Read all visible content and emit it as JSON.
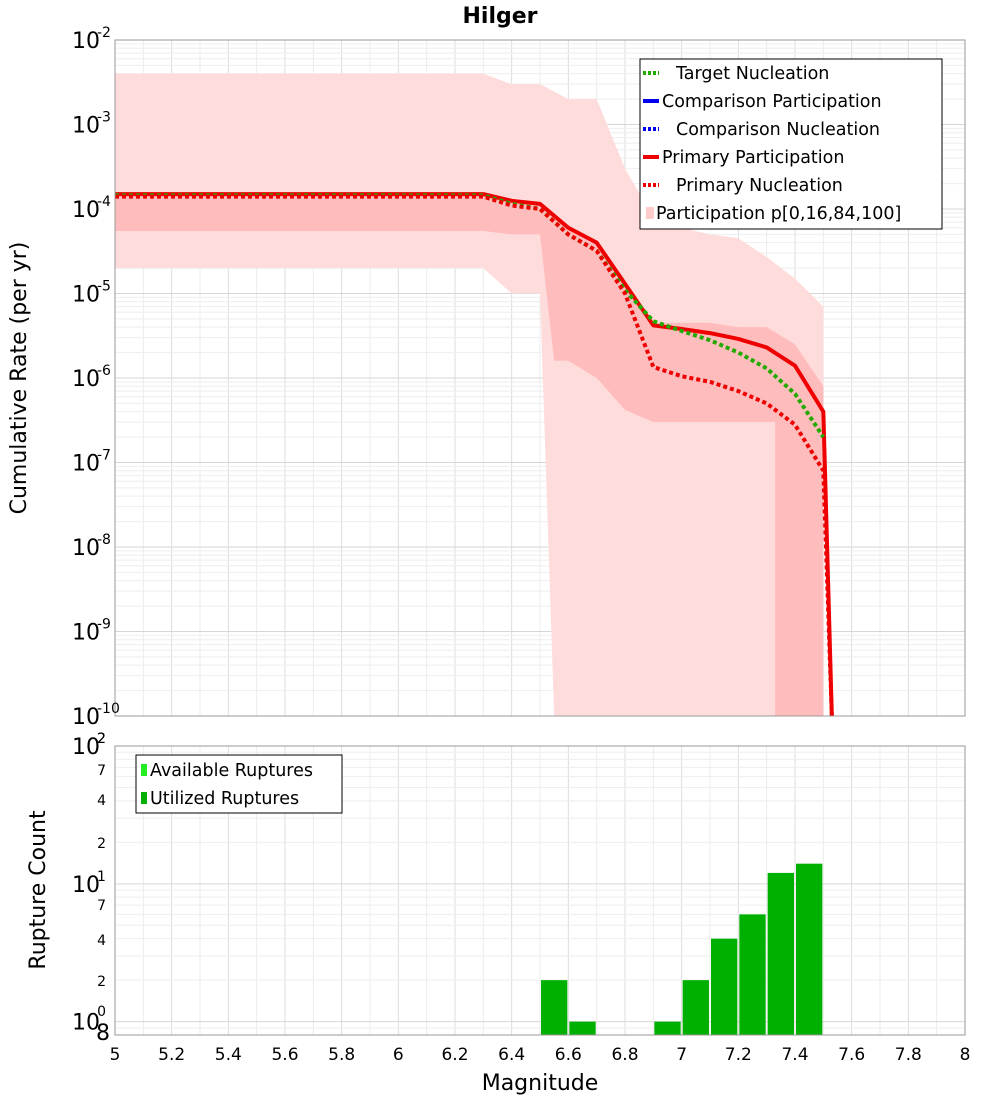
{
  "chart_data": [
    {
      "type": "line",
      "title": "Hilger",
      "ylabel": "Cumulative Rate (per yr)",
      "xlabel": "",
      "xlim": [
        5,
        8
      ],
      "ylim": [
        1e-10,
        0.01
      ],
      "yscale": "log",
      "ytick_labels": [
        {
          "base": "10",
          "exp": "-2"
        },
        {
          "base": "10",
          "exp": "-3"
        },
        {
          "base": "10",
          "exp": "-4"
        },
        {
          "base": "10",
          "exp": "-5"
        },
        {
          "base": "10",
          "exp": "-6"
        },
        {
          "base": "10",
          "exp": "-7"
        },
        {
          "base": "10",
          "exp": "-8"
        },
        {
          "base": "10",
          "exp": "-9"
        },
        {
          "base": "10",
          "exp": "-10"
        }
      ],
      "legend_position": "top-right",
      "legend": [
        {
          "label": "Target Nucleation",
          "color": "#22aa00",
          "style": "dotted"
        },
        {
          "label": "Comparison Participation",
          "color": "#0000ee",
          "style": "solid"
        },
        {
          "label": "Comparison Nucleation",
          "color": "#0000ee",
          "style": "dotted"
        },
        {
          "label": "Primary Participation",
          "color": "#ee0000",
          "style": "solid"
        },
        {
          "label": "Primary Nucleation",
          "color": "#ee0000",
          "style": "dotted"
        },
        {
          "label": "Participation p[0,16,84,100]",
          "color": "#ffcccc",
          "style": "fill"
        }
      ],
      "bands": [
        {
          "name": "p0-p100",
          "color": "#ffdcdc",
          "upper": [
            [
              5.0,
              0.004
            ],
            [
              6.3,
              0.004
            ],
            [
              6.4,
              0.003
            ],
            [
              6.5,
              0.003
            ],
            [
              6.6,
              0.002
            ],
            [
              6.7,
              0.002
            ],
            [
              6.8,
              0.0003
            ],
            [
              6.9,
              8e-05
            ],
            [
              7.0,
              6e-05
            ],
            [
              7.1,
              5e-05
            ],
            [
              7.2,
              4.5e-05
            ],
            [
              7.3,
              2.7e-05
            ],
            [
              7.4,
              1.5e-05
            ],
            [
              7.5,
              7e-06
            ]
          ],
          "lower": [
            [
              5.0,
              2e-05
            ],
            [
              6.3,
              2e-05
            ],
            [
              6.4,
              1e-05
            ],
            [
              6.5,
              1e-05
            ],
            [
              6.55,
              1e-10
            ],
            [
              7.33,
              1e-10
            ],
            [
              7.4,
              1e-10
            ],
            [
              7.5,
              1e-10
            ]
          ]
        },
        {
          "name": "p16-p84",
          "color": "#ffbcbc",
          "upper": [
            [
              5.0,
              0.00015
            ],
            [
              6.3,
              0.00015
            ],
            [
              6.4,
              0.00013
            ],
            [
              6.5,
              0.00012
            ],
            [
              6.6,
              6e-05
            ],
            [
              6.7,
              4e-05
            ],
            [
              6.8,
              1.2e-05
            ],
            [
              6.9,
              4.5e-06
            ],
            [
              7.0,
              4.5e-06
            ],
            [
              7.1,
              4.5e-06
            ],
            [
              7.2,
              4e-06
            ],
            [
              7.3,
              4e-06
            ],
            [
              7.4,
              2.5e-06
            ],
            [
              7.5,
              8e-07
            ]
          ],
          "lower": [
            [
              5.0,
              5.5e-05
            ],
            [
              6.3,
              5.5e-05
            ],
            [
              6.4,
              5e-05
            ],
            [
              6.5,
              5e-05
            ],
            [
              6.55,
              1.6e-06
            ],
            [
              6.6,
              1.6e-06
            ],
            [
              6.7,
              1e-06
            ],
            [
              6.8,
              4.2e-07
            ],
            [
              6.9,
              3e-07
            ],
            [
              7.0,
              3e-07
            ],
            [
              7.1,
              3e-07
            ],
            [
              7.2,
              3e-07
            ],
            [
              7.33,
              3e-07
            ],
            [
              7.33,
              1e-10
            ],
            [
              7.5,
              1e-10
            ]
          ]
        }
      ],
      "series": [
        {
          "name": "Target Nucleation",
          "color": "#22aa00",
          "style": "dotted",
          "x": [
            5.0,
            6.3,
            6.4,
            6.5,
            6.6,
            6.7,
            6.8,
            6.9,
            7.0,
            7.1,
            7.2,
            7.3,
            7.4,
            7.5
          ],
          "y": [
            0.000145,
            0.000145,
            0.000115,
            0.0001,
            5e-05,
            3.2e-05,
            1.1e-05,
            4.7e-06,
            3.6e-06,
            2.8e-06,
            2e-06,
            1.3e-06,
            6.5e-07,
            2e-07
          ]
        },
        {
          "name": "Primary Participation",
          "color": "#ee0000",
          "style": "solid",
          "x": [
            5.0,
            6.3,
            6.4,
            6.5,
            6.6,
            6.7,
            6.8,
            6.9,
            7.0,
            7.1,
            7.2,
            7.3,
            7.4,
            7.5,
            7.53
          ],
          "y": [
            0.00015,
            0.00015,
            0.000125,
            0.000115,
            6e-05,
            4e-05,
            1.3e-05,
            4.2e-06,
            3.8e-06,
            3.4e-06,
            2.9e-06,
            2.3e-06,
            1.4e-06,
            4e-07,
            1e-10
          ]
        },
        {
          "name": "Primary Nucleation",
          "color": "#ee0000",
          "style": "dotted",
          "x": [
            5.0,
            6.3,
            6.4,
            6.5,
            6.6,
            6.7,
            6.8,
            6.9,
            7.0,
            7.1,
            7.2,
            7.3,
            7.4,
            7.5,
            7.53
          ],
          "y": [
            0.00014,
            0.00014,
            0.00011,
            0.0001,
            5e-05,
            3.2e-05,
            1e-05,
            1.35e-06,
            1.05e-06,
            9e-07,
            7e-07,
            5e-07,
            2.8e-07,
            8e-08,
            1e-10
          ]
        }
      ]
    },
    {
      "type": "bar",
      "ylabel": "Rupture Count",
      "xlabel": "Magnitude",
      "xlim": [
        5,
        8
      ],
      "ylim": [
        0.8,
        100
      ],
      "yscale": "log",
      "xtick_labels": [
        "5",
        "5.2",
        "5.4",
        "5.6",
        "5.8",
        "6",
        "6.2",
        "6.4",
        "6.6",
        "6.8",
        "7",
        "7.2",
        "7.4",
        "7.6",
        "7.8",
        "8"
      ],
      "ytick_labels": [
        {
          "label": "2",
          "class": "minor"
        },
        {
          "label": "7",
          "class": "minor"
        },
        {
          "label": "4",
          "class": "minor"
        },
        {
          "label": "2",
          "class": "minor"
        },
        {
          "label": "7",
          "class": "minor"
        },
        {
          "label": "4",
          "class": "minor"
        },
        {
          "label": "2",
          "class": "minor"
        },
        {
          "label": "0",
          "class": "minor"
        },
        {
          "label": "8",
          "class": "decade"
        }
      ],
      "decade_labels": [
        {
          "base": "10",
          "exp": "2"
        },
        {
          "base": "10",
          "exp": "1"
        },
        {
          "base": "10",
          "exp": ""
        }
      ],
      "legend_position": "top-left",
      "legend": [
        {
          "label": "Available Ruptures",
          "color": "#22ee22"
        },
        {
          "label": "Utilized Ruptures",
          "color": "#00b000"
        }
      ],
      "bars": [
        {
          "x_start": 6.5,
          "x_end": 6.6,
          "value": 2
        },
        {
          "x_start": 6.6,
          "x_end": 6.7,
          "value": 1
        },
        {
          "x_start": 6.9,
          "x_end": 7.0,
          "value": 1
        },
        {
          "x_start": 7.0,
          "x_end": 7.1,
          "value": 2
        },
        {
          "x_start": 7.1,
          "x_end": 7.2,
          "value": 4
        },
        {
          "x_start": 7.2,
          "x_end": 7.3,
          "value": 6
        },
        {
          "x_start": 7.3,
          "x_end": 7.4,
          "value": 12
        },
        {
          "x_start": 7.4,
          "x_end": 7.5,
          "value": 14
        }
      ]
    }
  ]
}
